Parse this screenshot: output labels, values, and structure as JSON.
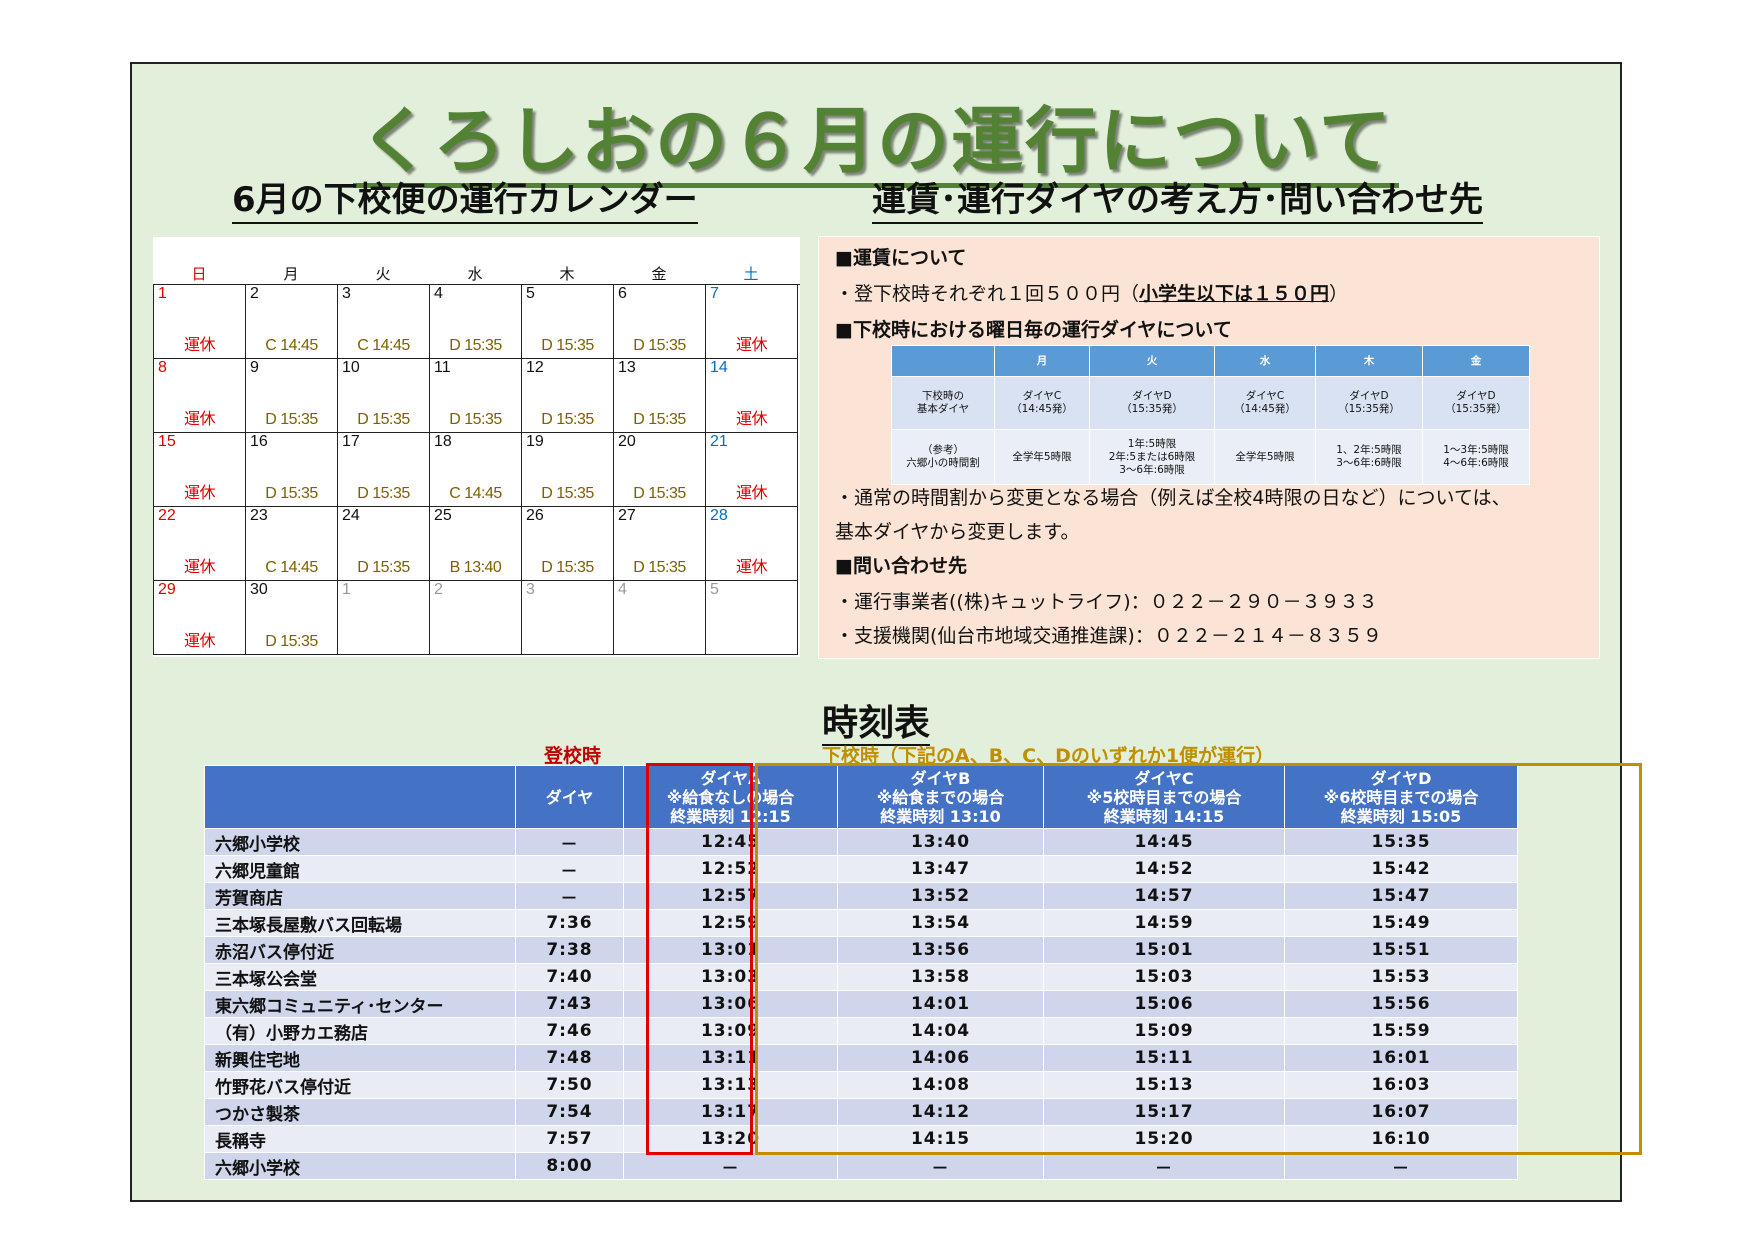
{
  "title": "くろしおの６月の運行について",
  "calendar_title": "6月の下校便の運行カレンダー",
  "info_title": "運賃･運行ダイヤの考え方･問い合わせ先",
  "weekdays": [
    "日",
    "月",
    "火",
    "水",
    "木",
    "金",
    "土"
  ],
  "calendar_rows": [
    [
      {
        "d": "1",
        "s": "運休",
        "c": "red"
      },
      {
        "d": "2",
        "s": "C 14:45"
      },
      {
        "d": "3",
        "s": "C 14:45"
      },
      {
        "d": "4",
        "s": "D 15:35"
      },
      {
        "d": "5",
        "s": "D 15:35"
      },
      {
        "d": "6",
        "s": "D 15:35"
      },
      {
        "d": "7",
        "s": "運休",
        "c": "blue"
      }
    ],
    [
      {
        "d": "8",
        "s": "運休",
        "c": "red"
      },
      {
        "d": "9",
        "s": "D 15:35"
      },
      {
        "d": "10",
        "s": "D 15:35"
      },
      {
        "d": "11",
        "s": "D 15:35"
      },
      {
        "d": "12",
        "s": "D 15:35"
      },
      {
        "d": "13",
        "s": "D 15:35"
      },
      {
        "d": "14",
        "s": "運休",
        "c": "blue"
      }
    ],
    [
      {
        "d": "15",
        "s": "運休",
        "c": "red"
      },
      {
        "d": "16",
        "s": "D 15:35"
      },
      {
        "d": "17",
        "s": "D 15:35"
      },
      {
        "d": "18",
        "s": "C 14:45"
      },
      {
        "d": "19",
        "s": "D 15:35"
      },
      {
        "d": "20",
        "s": "D 15:35"
      },
      {
        "d": "21",
        "s": "運休",
        "c": "blue"
      }
    ],
    [
      {
        "d": "22",
        "s": "運休",
        "c": "red"
      },
      {
        "d": "23",
        "s": "C 14:45"
      },
      {
        "d": "24",
        "s": "D 15:35"
      },
      {
        "d": "25",
        "s": "B 13:40"
      },
      {
        "d": "26",
        "s": "D 15:35"
      },
      {
        "d": "27",
        "s": "D 15:35"
      },
      {
        "d": "28",
        "s": "運休",
        "c": "blue"
      }
    ],
    [
      {
        "d": "29",
        "s": "運休",
        "c": "red"
      },
      {
        "d": "30",
        "s": "D 15:35"
      },
      {
        "d": "1",
        "s": "",
        "c": "gray"
      },
      {
        "d": "2",
        "s": "",
        "c": "gray"
      },
      {
        "d": "3",
        "s": "",
        "c": "gray"
      },
      {
        "d": "4",
        "s": "",
        "c": "gray"
      },
      {
        "d": "5",
        "s": "",
        "c": "gray"
      }
    ]
  ],
  "info": {
    "fare_head": "■運賃について",
    "fare_text": "・登下校時それぞれ１回５００円（",
    "fare_child": "小学生以下は１５０円",
    "fare_close": "）",
    "schedule_head": "■下校時における曜日毎の運行ダイヤについて",
    "mini_header": [
      "",
      "月",
      "火",
      "水",
      "木",
      "金"
    ],
    "mini_row1": [
      "下校時の\n基本ダイヤ",
      "ダイヤC\n（14:45発）",
      "ダイヤD\n（15:35発）",
      "ダイヤC\n（14:45発）",
      "ダイヤD\n（15:35発）",
      "ダイヤD\n（15:35発）"
    ],
    "mini_row2": [
      "（参考）\n六郷小の時間割",
      "全学年5時限",
      "1年:5時限\n2年:5または6時限\n3～6年:6時限",
      "全学年5時限",
      "1、2年:5時限\n3～6年:6時限",
      "1～3年:5時限\n4～6年:6時限"
    ],
    "note1": "・通常の時間割から変更となる場合（例えば全校4時限の日など）については、",
    "note2": "基本ダイヤから変更します。",
    "contact_head": "■問い合わせ先",
    "contact1": "・運行事業者((株)キュットライフ)：０２２－２９０－３９３３",
    "contact2": "・支援機関(仙台市地域交通推進課)：０２２－２１４－８３５９"
  },
  "timetable": {
    "title": "時刻表",
    "label_morning": "登校時",
    "label_afternoon": "下校時（下記のA、B、C、Dのいずれか1便が運行）",
    "headers": [
      "",
      "ダイヤ",
      "ダイヤA\n※給食なしの場合\n終業時刻 12:15",
      "ダイヤB\n※給食までの場合\n終業時刻 13:10",
      "ダイヤC\n※5校時目までの場合\n終業時刻 14:15",
      "ダイヤD\n※6校時目までの場合\n終業時刻 15:05"
    ],
    "rows": [
      [
        "六郷小学校",
        "－",
        "12:45",
        "13:40",
        "14:45",
        "15:35"
      ],
      [
        "六郷児童館",
        "－",
        "12:52",
        "13:47",
        "14:52",
        "15:42"
      ],
      [
        "芳賀商店",
        "－",
        "12:57",
        "13:52",
        "14:57",
        "15:47"
      ],
      [
        "三本塚長屋敷バス回転場",
        "7:36",
        "12:59",
        "13:54",
        "14:59",
        "15:49"
      ],
      [
        "赤沼バス停付近",
        "7:38",
        "13:01",
        "13:56",
        "15:01",
        "15:51"
      ],
      [
        "三本塚公会堂",
        "7:40",
        "13:03",
        "13:58",
        "15:03",
        "15:53"
      ],
      [
        "東六郷コミュニティ･センター",
        "7:43",
        "13:06",
        "14:01",
        "15:06",
        "15:56"
      ],
      [
        "（有）小野カエ務店",
        "7:46",
        "13:09",
        "14:04",
        "15:09",
        "15:59"
      ],
      [
        "新興住宅地",
        "7:48",
        "13:11",
        "14:06",
        "15:11",
        "16:01"
      ],
      [
        "竹野花バス停付近",
        "7:50",
        "13:13",
        "14:08",
        "15:13",
        "16:03"
      ],
      [
        "つかさ製茶",
        "7:54",
        "13:17",
        "14:12",
        "15:17",
        "16:07"
      ],
      [
        "長稱寺",
        "7:57",
        "13:20",
        "14:15",
        "15:20",
        "16:10"
      ],
      [
        "六郷小学校",
        "8:00",
        "－",
        "－",
        "－",
        "－"
      ]
    ]
  }
}
